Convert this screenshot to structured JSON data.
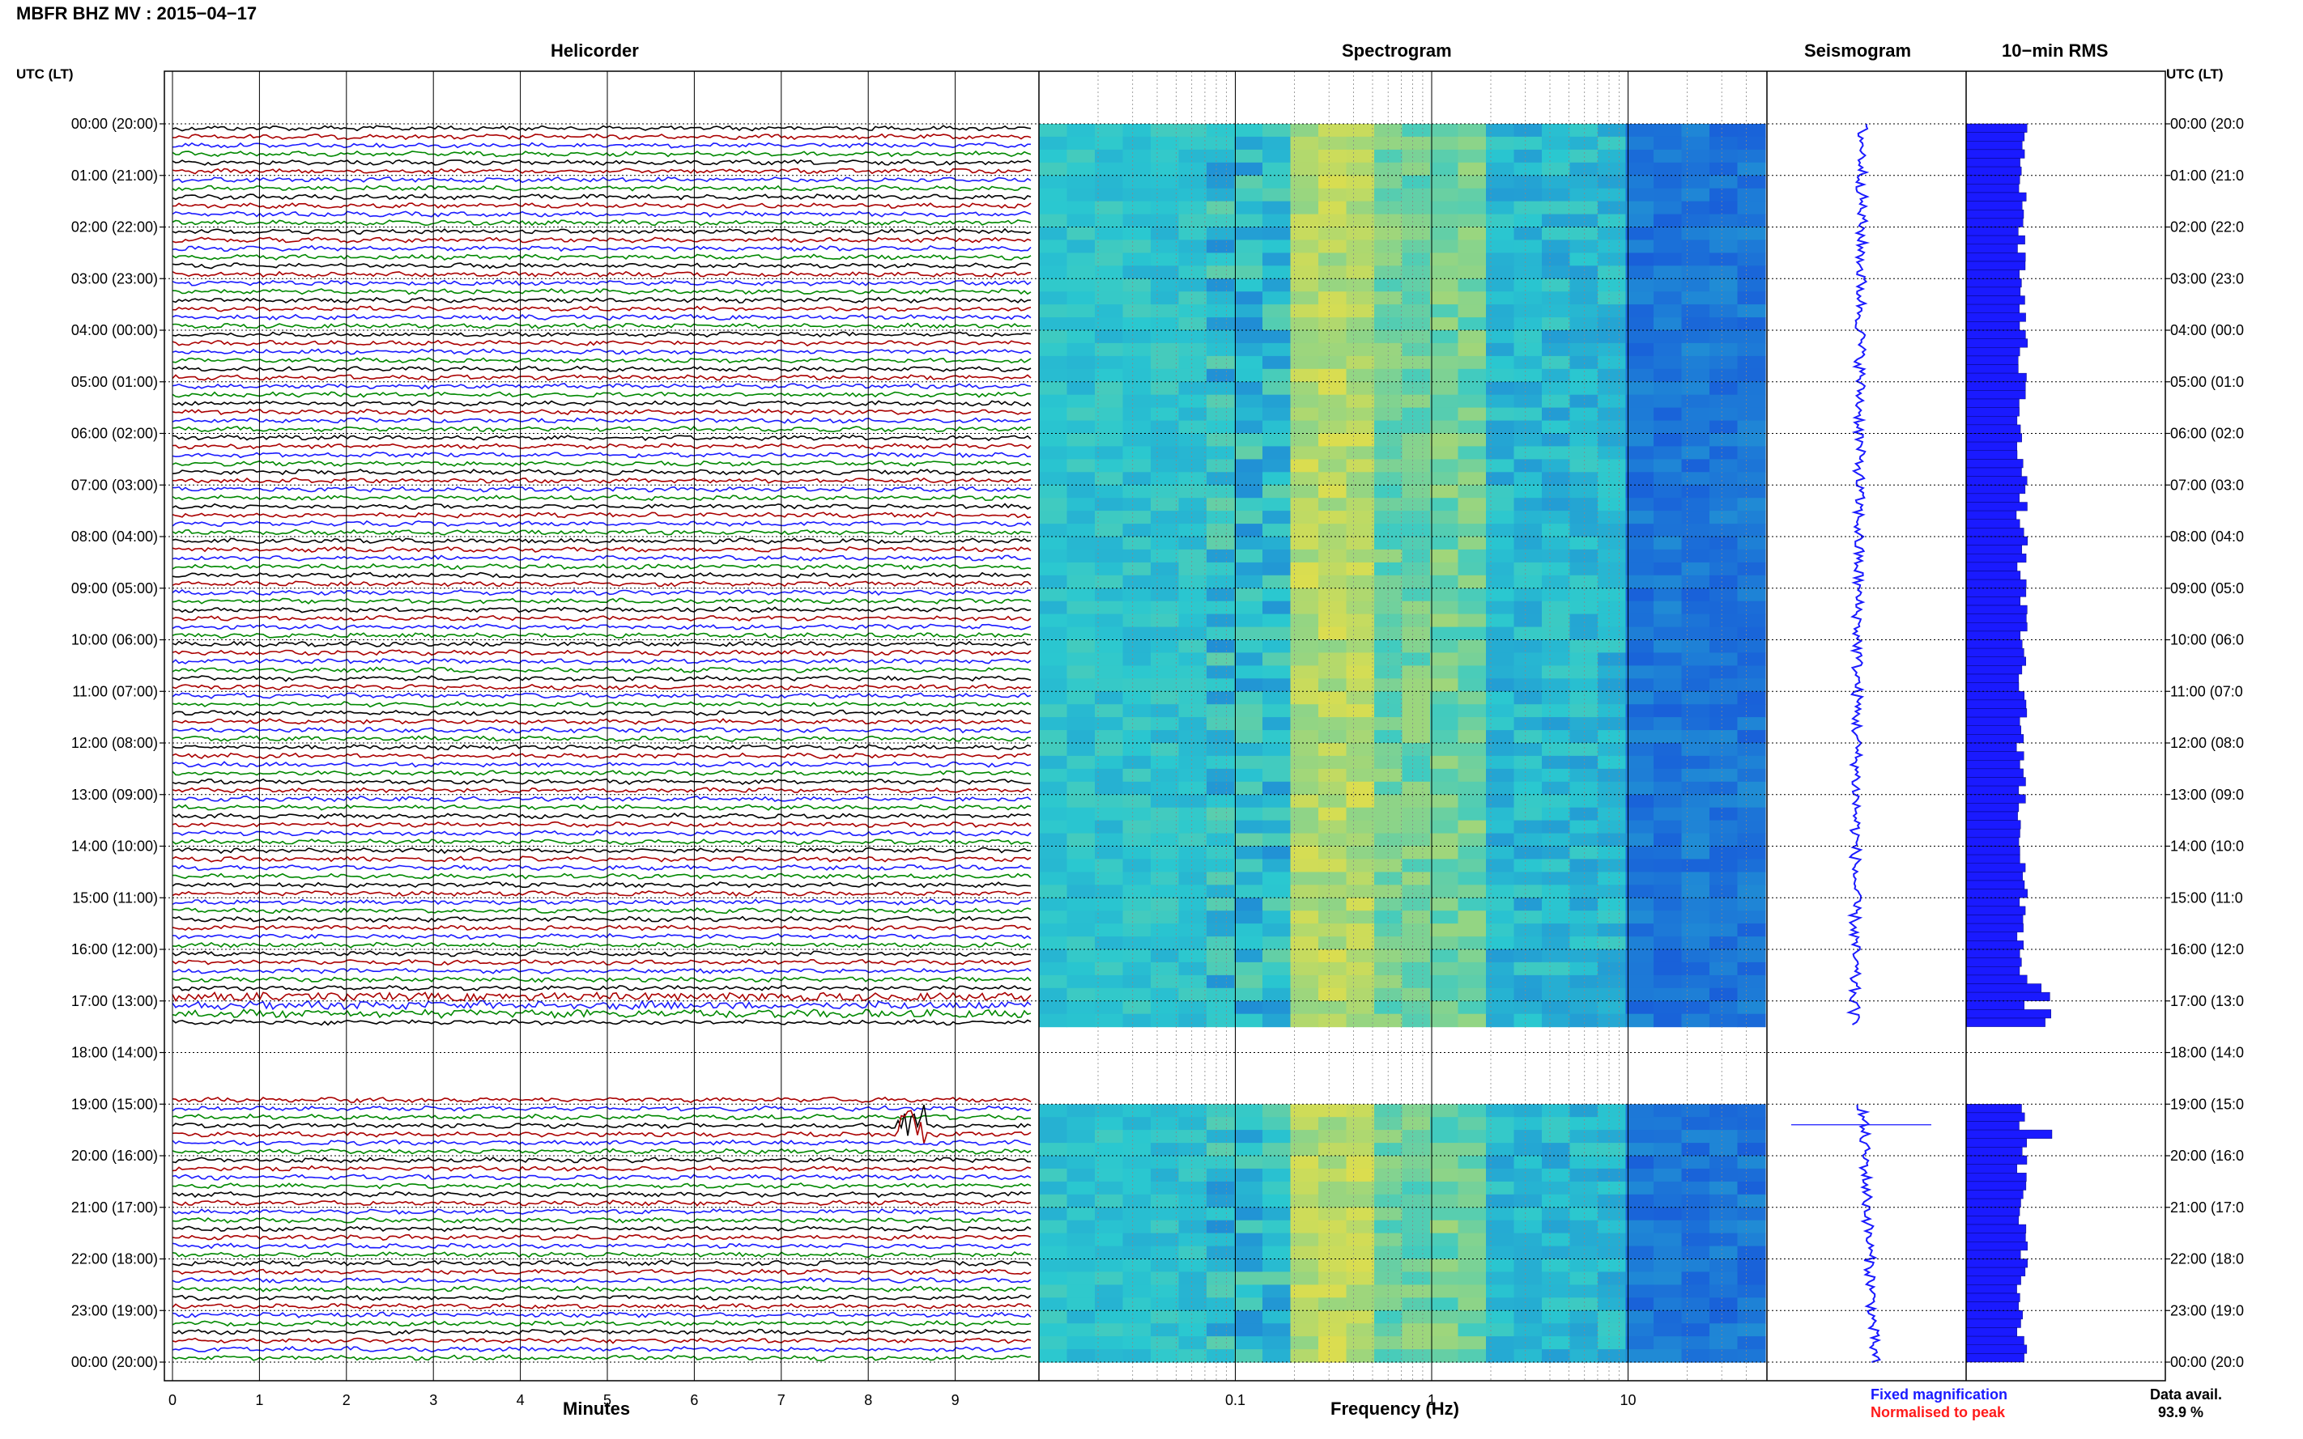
{
  "header": {
    "title": "MBFR BHZ MV : 2015−04−17"
  },
  "panels": {
    "helicorder": "Helicorder",
    "spectrogram": "Spectrogram",
    "seismogram": "Seismogram",
    "rms": "10−min RMS"
  },
  "axes": {
    "left_header": "UTC (LT)",
    "right_header": "UTC (LT)",
    "helicorder_xlabel": "Minutes",
    "spectrogram_xlabel": "Frequency (Hz)"
  },
  "footer": {
    "fixed_magnification": "Fixed magnification",
    "normalised_to_peak": "Normalised to peak",
    "data_avail_label": "Data avail.",
    "data_avail_value": "93.9 %"
  },
  "colors": {
    "trace_colors": [
      "#000000",
      "#aa0000",
      "#1a1aff",
      "#008800"
    ],
    "spectrogram_low": "#1133dd",
    "spectrogram_high": "#f0e040",
    "rms_bar": "#1a1aff",
    "seismogram": "#1a1aff",
    "note_blue": "#1a1aff",
    "note_red": "#ff1a1a"
  },
  "chart_data": [
    {
      "type": "helicorder",
      "title": "Helicorder",
      "xlabel": "Minutes",
      "x_ticks": [
        0,
        1,
        2,
        3,
        4,
        5,
        6,
        7,
        8,
        9
      ],
      "xlim": [
        0,
        10
      ],
      "y_ticks_left": [
        "00:00 (20:00)",
        "01:00 (21:00)",
        "02:00 (22:00)",
        "03:00 (23:00)",
        "04:00 (00:00)",
        "05:00 (01:00)",
        "06:00 (02:00)",
        "07:00 (03:00)",
        "08:00 (04:00)",
        "09:00 (05:00)",
        "10:00 (06:00)",
        "11:00 (07:00)",
        "12:00 (08:00)",
        "13:00 (09:00)",
        "14:00 (10:00)",
        "15:00 (11:00)",
        "16:00 (12:00)",
        "17:00 (13:00)",
        "18:00 (14:00)",
        "19:00 (15:00)",
        "20:00 (16:00)",
        "21:00 (17:00)",
        "22:00 (18:00)",
        "23:00 (19:00)",
        "00:00 (20:00)"
      ],
      "lines_per_hour": 6,
      "data_gap_utc": [
        "17:30",
        "18:50"
      ],
      "event_utc": "19:30",
      "event_minute": 8.5
    },
    {
      "type": "heatmap",
      "title": "Spectrogram",
      "xlabel": "Frequency (Hz)",
      "x_scale": "log",
      "x_ticks": [
        0.1,
        1,
        10
      ],
      "xlim": [
        0.01,
        50
      ],
      "data_gap_utc": [
        "17:30",
        "19:00"
      ]
    },
    {
      "type": "line",
      "title": "Seismogram",
      "data_gap_utc": [
        "17:30",
        "19:00"
      ]
    },
    {
      "type": "bar",
      "title": "10−min RMS",
      "interval_minutes": 10,
      "data_gap_utc": [
        "17:30",
        "19:00"
      ],
      "y_ticks_right": [
        "00:00 (20:0",
        "01:00 (21:0",
        "02:00 (22:0",
        "03:00 (23:0",
        "04:00 (00:0",
        "05:00 (01:0",
        "06:00 (02:0",
        "07:00 (03:0",
        "08:00 (04:0",
        "09:00 (05:0",
        "10:00 (06:0",
        "11:00 (07:0",
        "12:00 (08:0",
        "13:00 (09:0",
        "14:00 (10:0",
        "15:00 (11:0",
        "16:00 (12:0",
        "17:00 (13:0",
        "18:00 (14:0",
        "19:00 (15:0",
        "20:00 (16:0",
        "21:00 (17:0",
        "22:00 (18:0",
        "23:00 (19:0",
        "00:00 (20:0"
      ]
    }
  ]
}
